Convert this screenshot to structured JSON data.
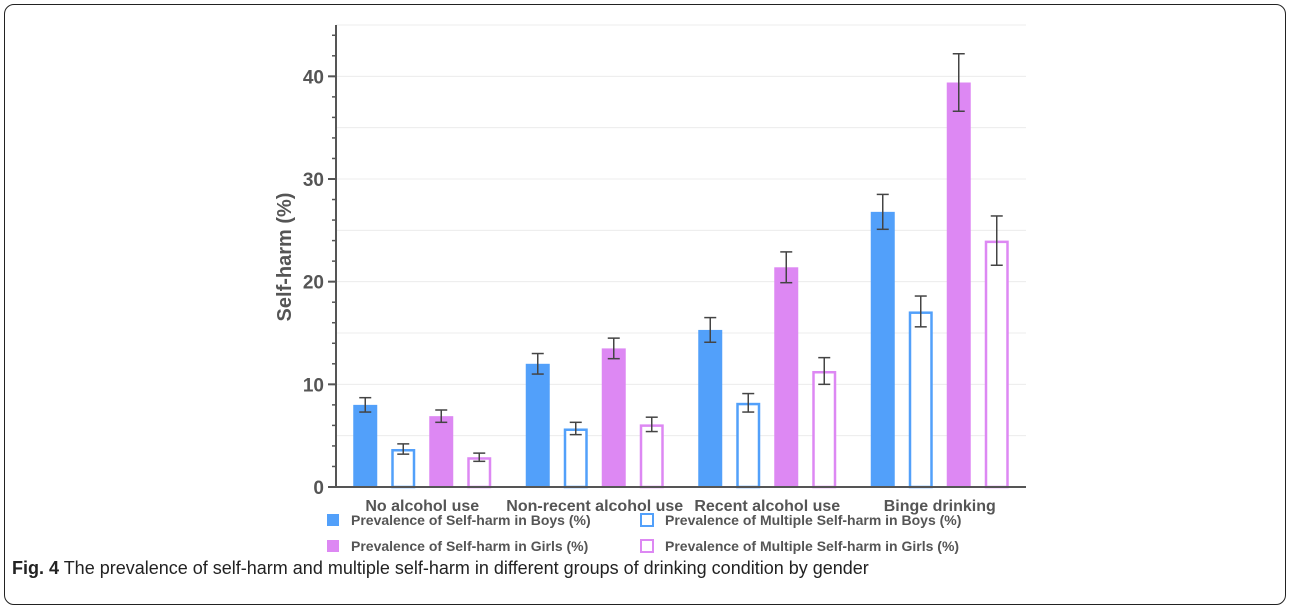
{
  "chart_data": {
    "type": "bar",
    "categories": [
      "No alcohol use",
      "Non-recent alcohol use",
      "Recent alcohol use",
      "Binge drinking"
    ],
    "ylabel": "Self-harm (%)",
    "xlabel": "",
    "ylim": [
      0,
      45
    ],
    "yticks": [
      0,
      10,
      20,
      30,
      40
    ],
    "grid": true,
    "legend_position": "bottom",
    "series": [
      {
        "name": "Prevalence of Self-harm in Boys (%)",
        "color": "#52a0fa",
        "style": "filled",
        "values": [
          8.0,
          12.0,
          15.3,
          26.8
        ],
        "errors": [
          0.7,
          1.0,
          1.2,
          1.7
        ]
      },
      {
        "name": "Prevalence of Multiple Self-harm in Boys (%)",
        "color": "#52a0fa",
        "style": "outline",
        "values": [
          3.7,
          5.7,
          8.2,
          17.1
        ],
        "errors": [
          0.5,
          0.6,
          0.9,
          1.5
        ]
      },
      {
        "name": "Prevalence of Self-harm in Girls (%)",
        "color": "#dd88f3",
        "style": "filled",
        "values": [
          6.9,
          13.5,
          21.4,
          39.4
        ],
        "errors": [
          0.6,
          1.0,
          1.5,
          2.8
        ]
      },
      {
        "name": "Prevalence of Multiple Self-harm in Girls (%)",
        "color": "#dd88f3",
        "style": "outline",
        "values": [
          2.9,
          6.1,
          11.3,
          24.0
        ],
        "errors": [
          0.4,
          0.7,
          1.3,
          2.4
        ]
      }
    ]
  },
  "caption": {
    "label": "Fig. 4",
    "text": " The prevalence of self-harm and multiple self-harm in different groups of drinking condition by gender"
  }
}
